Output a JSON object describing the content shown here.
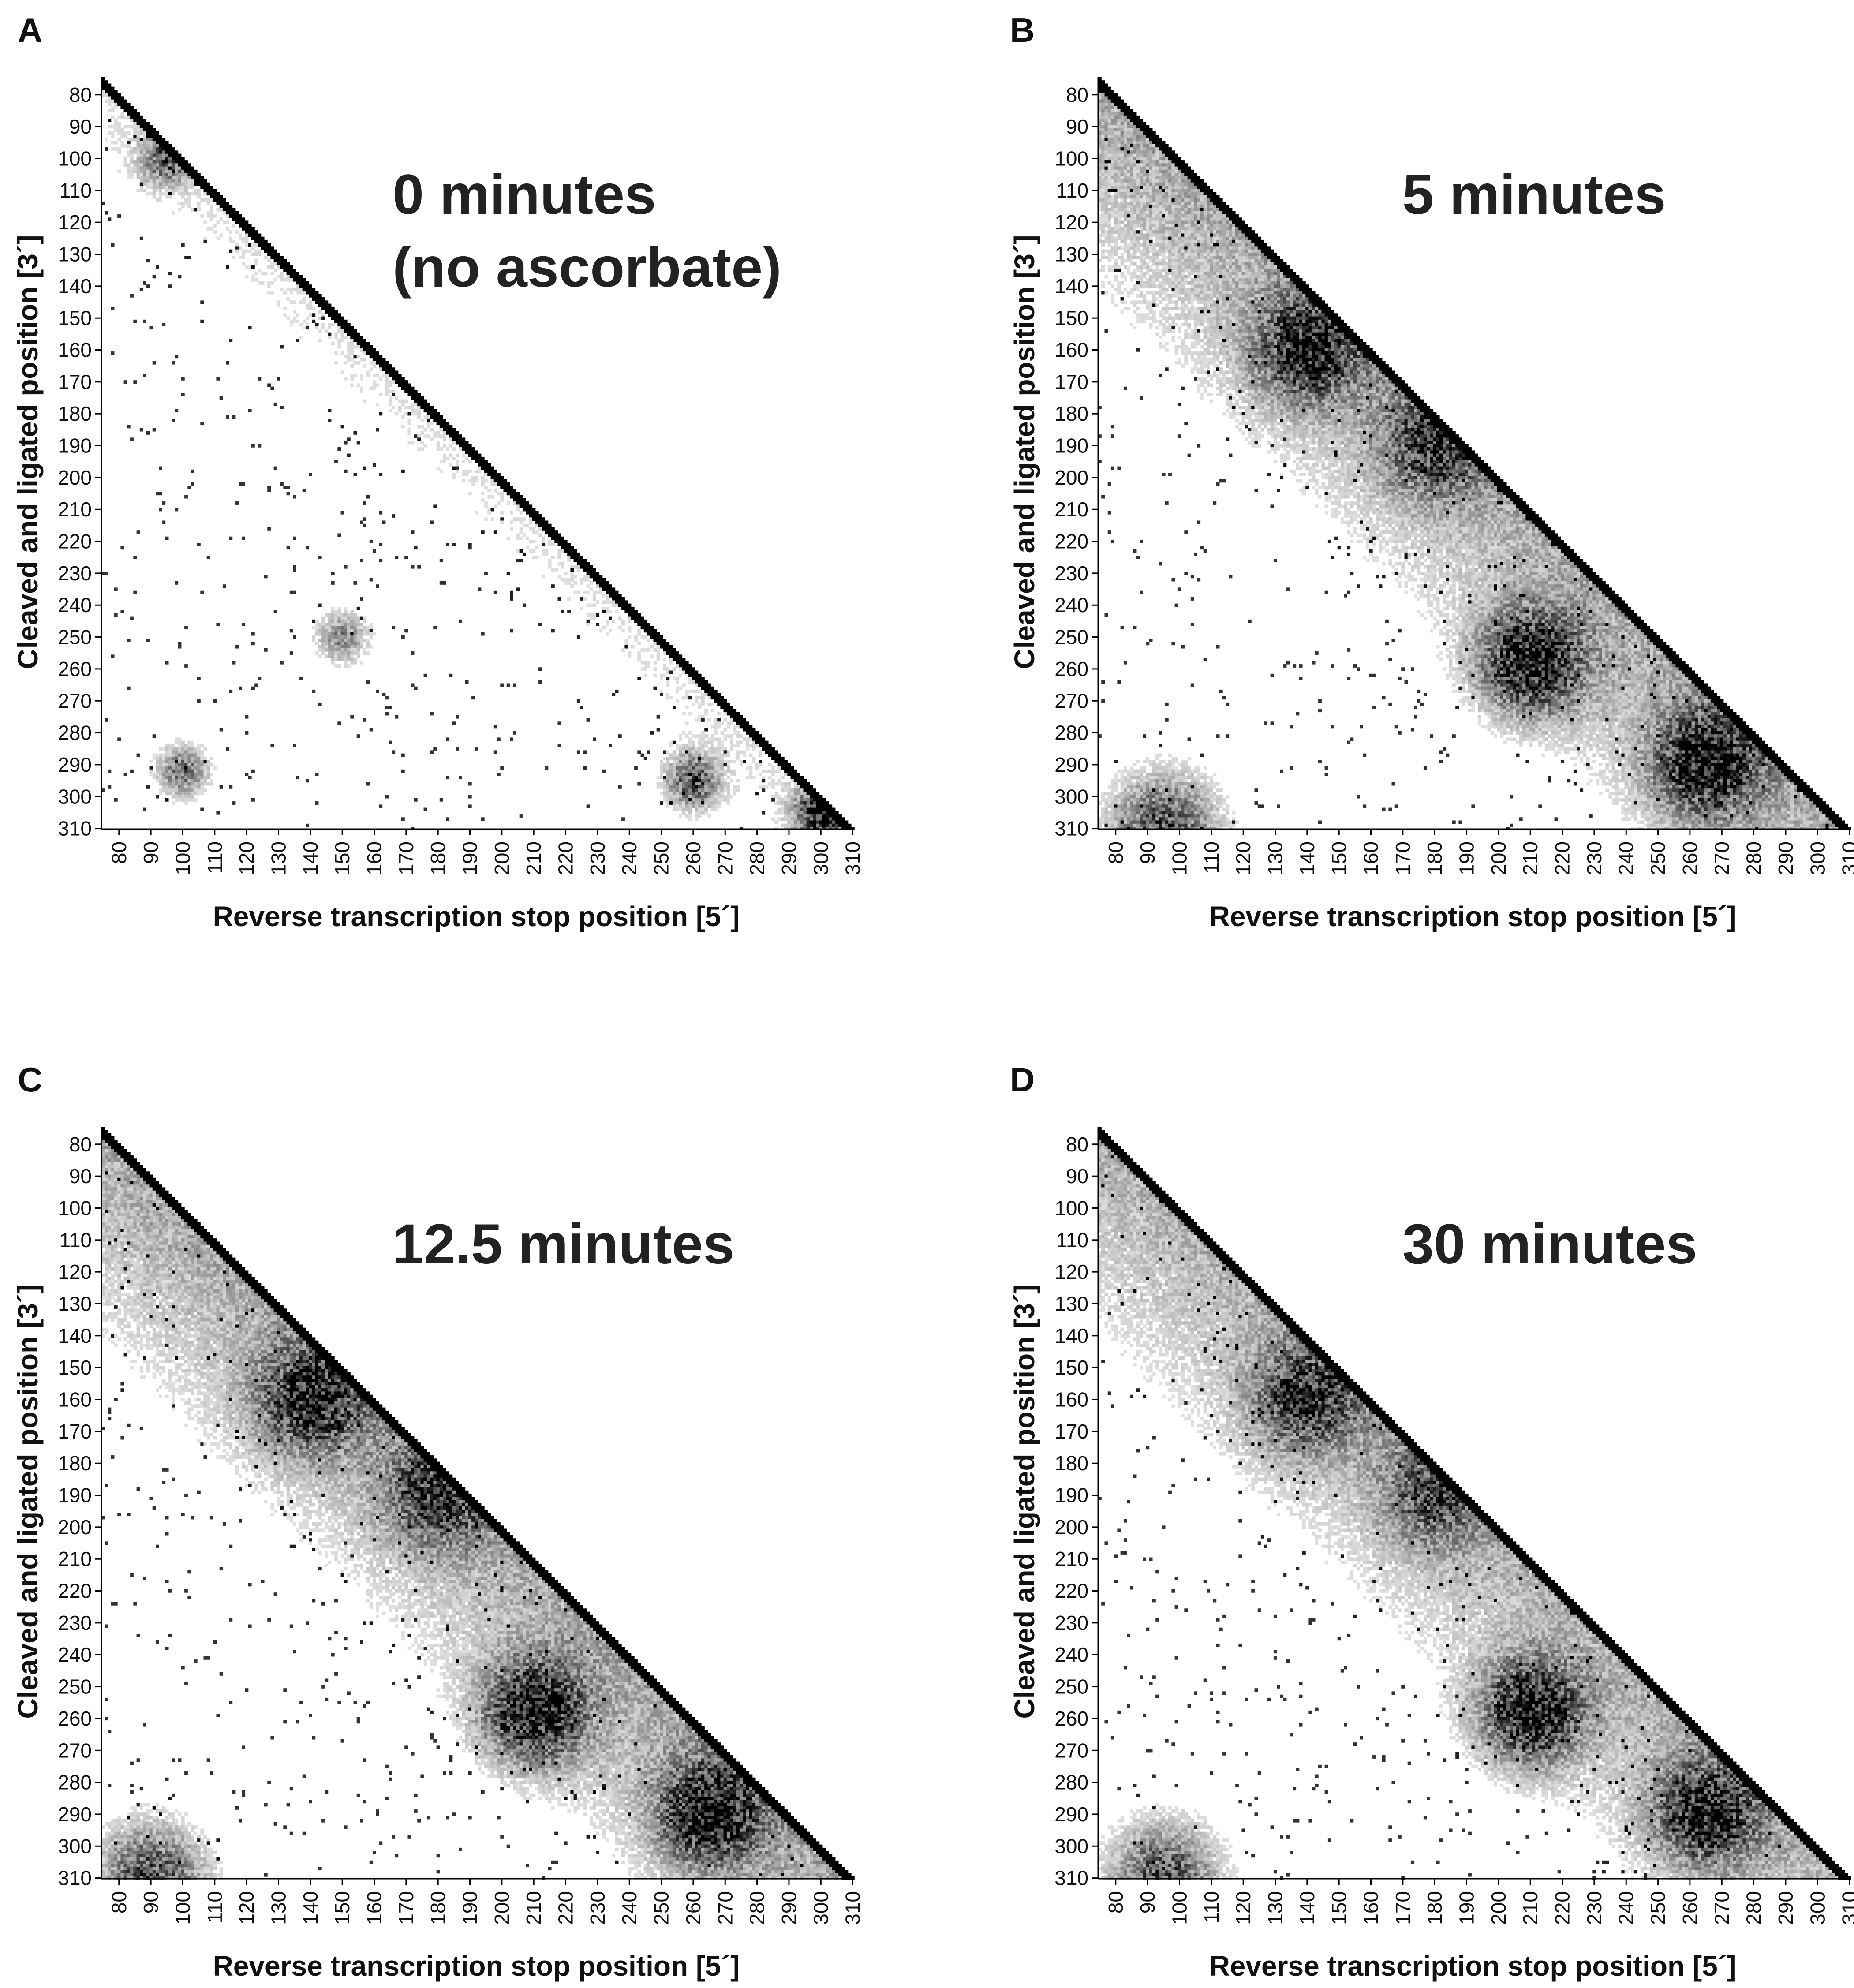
{
  "chart_data": [
    {
      "type": "heatmap",
      "panel": "A",
      "title_lines": [
        "0 minutes",
        "(no ascorbate)"
      ],
      "xlabel": "Reverse transcription stop position [5´]",
      "ylabel": "Cleaved and ligated position [3´]",
      "xlim": [
        75,
        310
      ],
      "ylim": [
        75,
        310
      ],
      "x_ticks": [
        80,
        90,
        100,
        110,
        120,
        130,
        140,
        150,
        160,
        170,
        180,
        190,
        200,
        210,
        220,
        230,
        240,
        250,
        260,
        270,
        280,
        290,
        300,
        310
      ],
      "y_ticks": [
        80,
        90,
        100,
        110,
        120,
        130,
        140,
        150,
        160,
        170,
        180,
        190,
        200,
        210,
        220,
        230,
        240,
        250,
        260,
        270,
        280,
        290,
        300,
        310
      ],
      "colorscale": [
        "#ffffff",
        "#000000"
      ],
      "density": 0.0,
      "hotspots": [
        {
          "x": 95,
          "y": 100,
          "value": 0.6
        },
        {
          "x": 260,
          "y": 295,
          "value": 0.7
        },
        {
          "x": 300,
          "y": 305,
          "value": 0.9
        },
        {
          "x": 150,
          "y": 250,
          "value": 0.45
        },
        {
          "x": 100,
          "y": 292,
          "value": 0.55
        }
      ]
    },
    {
      "type": "heatmap",
      "panel": "B",
      "title_lines": [
        "5 minutes"
      ],
      "xlabel": "Reverse transcription stop position [5´]",
      "ylabel": "Cleaved and ligated position [3´]",
      "xlim": [
        75,
        310
      ],
      "ylim": [
        75,
        310
      ],
      "x_ticks": [
        80,
        90,
        100,
        110,
        120,
        130,
        140,
        150,
        160,
        170,
        180,
        190,
        200,
        210,
        220,
        230,
        240,
        250,
        260,
        270,
        280,
        290,
        300,
        310
      ],
      "y_ticks": [
        80,
        90,
        100,
        110,
        120,
        130,
        140,
        150,
        160,
        170,
        180,
        190,
        200,
        210,
        220,
        230,
        240,
        250,
        260,
        270,
        280,
        290,
        300,
        310
      ],
      "colorscale": [
        "#ffffff",
        "#000000"
      ],
      "density": 1.0,
      "hotspots": [
        {
          "x": 140,
          "y": 160,
          "value": 0.7
        },
        {
          "x": 210,
          "y": 258,
          "value": 0.85
        },
        {
          "x": 265,
          "y": 290,
          "value": 0.8
        },
        {
          "x": 180,
          "y": 190,
          "value": 0.55
        },
        {
          "x": 95,
          "y": 310,
          "value": 0.7
        }
      ]
    },
    {
      "type": "heatmap",
      "panel": "C",
      "title_lines": [
        "12.5 minutes"
      ],
      "xlabel": "Reverse transcription stop position [5´]",
      "ylabel": "Cleaved and ligated position [3´]",
      "xlim": [
        75,
        310
      ],
      "ylim": [
        75,
        310
      ],
      "x_ticks": [
        80,
        90,
        100,
        110,
        120,
        130,
        140,
        150,
        160,
        170,
        180,
        190,
        200,
        210,
        220,
        230,
        240,
        250,
        260,
        270,
        280,
        290,
        300,
        310
      ],
      "y_ticks": [
        80,
        90,
        100,
        110,
        120,
        130,
        140,
        150,
        160,
        170,
        180,
        190,
        200,
        210,
        220,
        230,
        240,
        250,
        260,
        270,
        280,
        290,
        300,
        310
      ],
      "colorscale": [
        "#ffffff",
        "#000000"
      ],
      "density": 1.0,
      "hotspots": [
        {
          "x": 140,
          "y": 160,
          "value": 0.7
        },
        {
          "x": 210,
          "y": 258,
          "value": 0.85
        },
        {
          "x": 265,
          "y": 290,
          "value": 0.8
        },
        {
          "x": 180,
          "y": 190,
          "value": 0.55
        },
        {
          "x": 90,
          "y": 310,
          "value": 0.7
        }
      ]
    },
    {
      "type": "heatmap",
      "panel": "D",
      "title_lines": [
        "30 minutes"
      ],
      "xlabel": "Reverse transcription stop position [5´]",
      "ylabel": "Cleaved and ligated position [3´]",
      "xlim": [
        75,
        310
      ],
      "ylim": [
        75,
        310
      ],
      "x_ticks": [
        80,
        90,
        100,
        110,
        120,
        130,
        140,
        150,
        160,
        170,
        180,
        190,
        200,
        210,
        220,
        230,
        240,
        250,
        260,
        270,
        280,
        290,
        300,
        310
      ],
      "y_ticks": [
        80,
        90,
        100,
        110,
        120,
        130,
        140,
        150,
        160,
        170,
        180,
        190,
        200,
        210,
        220,
        230,
        240,
        250,
        260,
        270,
        280,
        290,
        300,
        310
      ],
      "colorscale": [
        "#ffffff",
        "#000000"
      ],
      "density": 0.9,
      "hotspots": [
        {
          "x": 140,
          "y": 160,
          "value": 0.65
        },
        {
          "x": 210,
          "y": 258,
          "value": 0.85
        },
        {
          "x": 265,
          "y": 290,
          "value": 0.75
        },
        {
          "x": 180,
          "y": 190,
          "value": 0.5
        },
        {
          "x": 95,
          "y": 310,
          "value": 0.7
        }
      ]
    }
  ]
}
